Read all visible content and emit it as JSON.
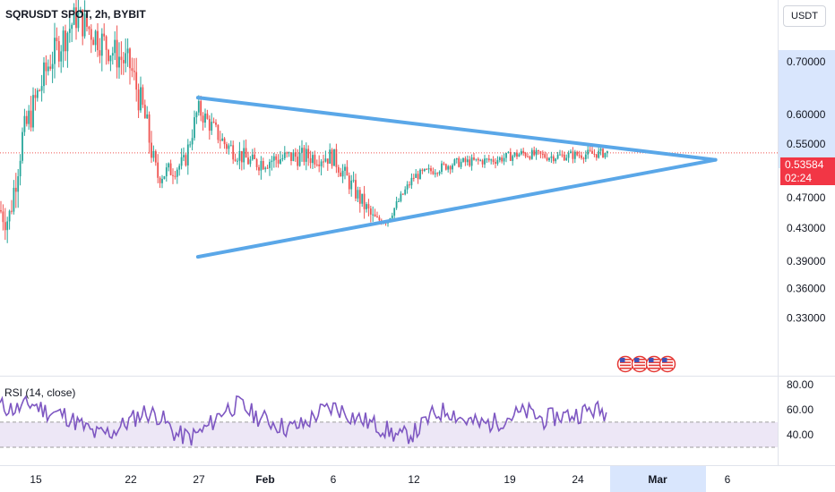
{
  "header": {
    "symbol_line": "SQRUSDT SPOT, 2h, BYBIT",
    "currency_button": "USDT"
  },
  "price_tag": {
    "price": "0.53584",
    "countdown": "02:24"
  },
  "rsi": {
    "label": "RSI (14, close)"
  },
  "colors": {
    "up": "#26a69a",
    "down": "#ef5350",
    "trendline": "#5aa7e8",
    "rsi_line": "#7e57c2",
    "rsi_band": "#ede7f6",
    "price_tag": "#f23645"
  },
  "chart_data": [
    {
      "type": "candlestick",
      "title": "SQRUSDT SPOT, 2h, BYBIT",
      "x_ticks": [
        "15",
        "22",
        "27",
        "Feb",
        "6",
        "12",
        "19",
        "24",
        "Mar",
        "6"
      ],
      "y_ticks": [
        "0.70000",
        "0.60000",
        "0.55000",
        "0.47000",
        "0.43000",
        "0.39000",
        "0.36000",
        "0.33000"
      ],
      "y_scale": "log",
      "ylim": [
        0.305,
        0.86
      ],
      "last_price": 0.53584,
      "close_path_approx": [
        {
          "date": "Jan 12",
          "close": 0.46
        },
        {
          "date": "Jan 13",
          "close": 0.44
        },
        {
          "date": "Jan 14",
          "close": 0.56
        },
        {
          "date": "Jan 16",
          "close": 0.7
        },
        {
          "date": "Jan 18",
          "close": 0.8
        },
        {
          "date": "Jan 20",
          "close": 0.74
        },
        {
          "date": "Jan 22",
          "close": 0.69
        },
        {
          "date": "Jan 23",
          "close": 0.6
        },
        {
          "date": "Jan 24",
          "close": 0.5
        },
        {
          "date": "Jan 26",
          "close": 0.52
        },
        {
          "date": "Jan 27",
          "close": 0.61
        },
        {
          "date": "Jan 29",
          "close": 0.55
        },
        {
          "date": "Jan 31",
          "close": 0.52
        },
        {
          "date": "Feb 3",
          "close": 0.53
        },
        {
          "date": "Feb 6",
          "close": 0.53
        },
        {
          "date": "Feb 9",
          "close": 0.44
        },
        {
          "date": "Feb 10",
          "close": 0.44
        },
        {
          "date": "Feb 12",
          "close": 0.5
        },
        {
          "date": "Feb 15",
          "close": 0.52
        },
        {
          "date": "Feb 18",
          "close": 0.525
        },
        {
          "date": "Feb 20",
          "close": 0.535
        },
        {
          "date": "Feb 22",
          "close": 0.53
        },
        {
          "date": "Feb 25",
          "close": 0.53584
        }
      ],
      "trendlines": [
        {
          "from": {
            "date": "Jan 27",
            "price": 0.63
          },
          "to": {
            "date": "Mar 3",
            "price": 0.525
          }
        },
        {
          "from": {
            "date": "Jan 27",
            "price": 0.395
          },
          "to": {
            "date": "Mar 3",
            "price": 0.525
          }
        }
      ]
    },
    {
      "type": "line",
      "title": "RSI (14, close)",
      "y_ticks": [
        "80.00",
        "60.00",
        "40.00"
      ],
      "ylim": [
        25,
        82
      ],
      "band": [
        30,
        50
      ],
      "values_approx": [
        63,
        60,
        65,
        58,
        56,
        48,
        40,
        42,
        50,
        58,
        55,
        40,
        38,
        46,
        60,
        64,
        55,
        50,
        45,
        48,
        58,
        62,
        55,
        50,
        45,
        38,
        42,
        55,
        60,
        52,
        48,
        50,
        55,
        58,
        52,
        55,
        56,
        60,
        58
      ]
    }
  ]
}
